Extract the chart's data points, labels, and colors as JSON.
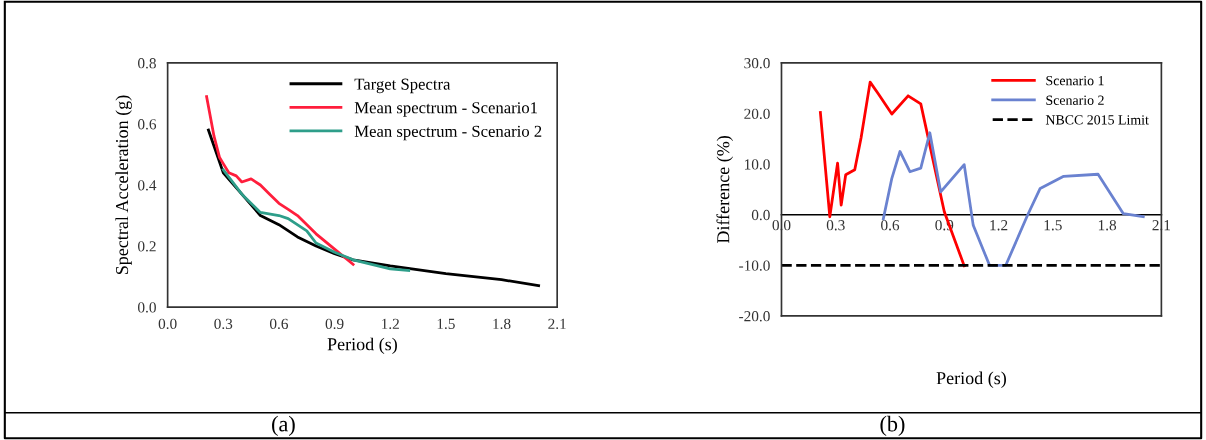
{
  "chart_data": [
    {
      "type": "line",
      "xlabel": "Period (s)",
      "ylabel": "Spectral Acceleration (g)",
      "legend": "top right",
      "grid": false,
      "marker": "none",
      "line_style": "solid",
      "xlim": [
        0,
        2.1
      ],
      "xticks": [
        {
          "value": 0,
          "label": "0.0"
        },
        0.3,
        0.6,
        0.9,
        1.2,
        1.5,
        1.8,
        2.1
      ],
      "ylim": [
        0,
        0.8
      ],
      "yticks": [
        {
          "value": 0,
          "label": "0.0"
        },
        0.2,
        0.4,
        0.6,
        0.8
      ],
      "annotations": [
        "(a)"
      ],
      "series": [
        {
          "name": "Target Spectra",
          "color": "#000000",
          "x": [
            0.22,
            0.3,
            0.4,
            0.5,
            0.6,
            0.7,
            0.8,
            0.9,
            1.0,
            1.2,
            1.5,
            1.8,
            2.0
          ],
          "values": [
            0.58,
            0.44,
            0.37,
            0.3,
            0.27,
            0.23,
            0.2,
            0.175,
            0.155,
            0.135,
            0.11,
            0.09,
            0.07
          ]
        },
        {
          "name": "Mean spectrum - Scenario1",
          "color": "#ff1e3c",
          "x": [
            0.21,
            0.25,
            0.28,
            0.3,
            0.33,
            0.37,
            0.4,
            0.45,
            0.5,
            0.55,
            0.6,
            0.65,
            0.7,
            0.8,
            0.9,
            1.0
          ],
          "values": [
            0.69,
            0.56,
            0.49,
            0.47,
            0.44,
            0.43,
            0.41,
            0.42,
            0.4,
            0.37,
            0.34,
            0.32,
            0.3,
            0.24,
            0.19,
            0.14
          ]
        },
        {
          "name": "Mean spectrum - Scenario 2",
          "color": "#2e9e8a",
          "x": [
            0.3,
            0.4,
            0.5,
            0.6,
            0.65,
            0.75,
            0.8,
            0.9,
            1.0,
            1.1,
            1.2,
            1.3
          ],
          "values": [
            0.45,
            0.37,
            0.31,
            0.3,
            0.29,
            0.25,
            0.21,
            0.18,
            0.155,
            0.14,
            0.125,
            0.12
          ]
        }
      ]
    },
    {
      "type": "line",
      "xlabel": "Period (s)",
      "ylabel": "Difference (%)",
      "legend": "top right",
      "grid": false,
      "marker": "none",
      "line_style": "solid",
      "xlim": [
        0,
        2.1
      ],
      "xticks": [
        {
          "value": 0,
          "label": "0.0"
        },
        0.3,
        0.6,
        0.9,
        1.2,
        1.5,
        1.8,
        2.1
      ],
      "ylim": [
        -20,
        30
      ],
      "yticks": [
        {
          "value": -20,
          "label": "-20.0"
        },
        {
          "value": -10,
          "label": "-10.0"
        },
        {
          "value": 0,
          "label": "0.0"
        },
        {
          "value": 10,
          "label": "10.0"
        },
        {
          "value": 20,
          "label": "20.0"
        },
        {
          "value": 30,
          "label": "30.0"
        }
      ],
      "annotations": [
        "(b)"
      ],
      "ref_lines": [
        {
          "axis": "y",
          "value": -10,
          "label": "NBCC 2015 Limit",
          "color": "#000000",
          "line_style": "dashed"
        }
      ],
      "series": [
        {
          "name": "Scenario 1",
          "color": "#ff0000",
          "x": [
            0.215,
            0.267,
            0.31,
            0.33,
            0.355,
            0.405,
            0.44,
            0.49,
            0.535,
            0.61,
            0.7,
            0.77,
            0.9,
            1.01
          ],
          "values": [
            20.2,
            -0.4,
            10.2,
            1.9,
            7.9,
            8.9,
            15.2,
            26.2,
            23.9,
            19.9,
            23.5,
            21.9,
            0.6,
            -10.1
          ]
        },
        {
          "name": "Scenario 2",
          "color": "#6a82d0",
          "x": [
            0.563,
            0.61,
            0.655,
            0.71,
            0.77,
            0.82,
            0.88,
            1.01,
            1.06,
            1.15,
            1.24,
            1.36,
            1.43,
            1.56,
            1.75,
            1.89,
            2.0
          ],
          "values": [
            -0.8,
            7.2,
            12.5,
            8.5,
            9.2,
            16.2,
            4.5,
            9.9,
            -2.1,
            -10,
            -10,
            -0.1,
            5.2,
            7.6,
            8.0,
            0.2,
            -0.4
          ]
        }
      ]
    }
  ]
}
